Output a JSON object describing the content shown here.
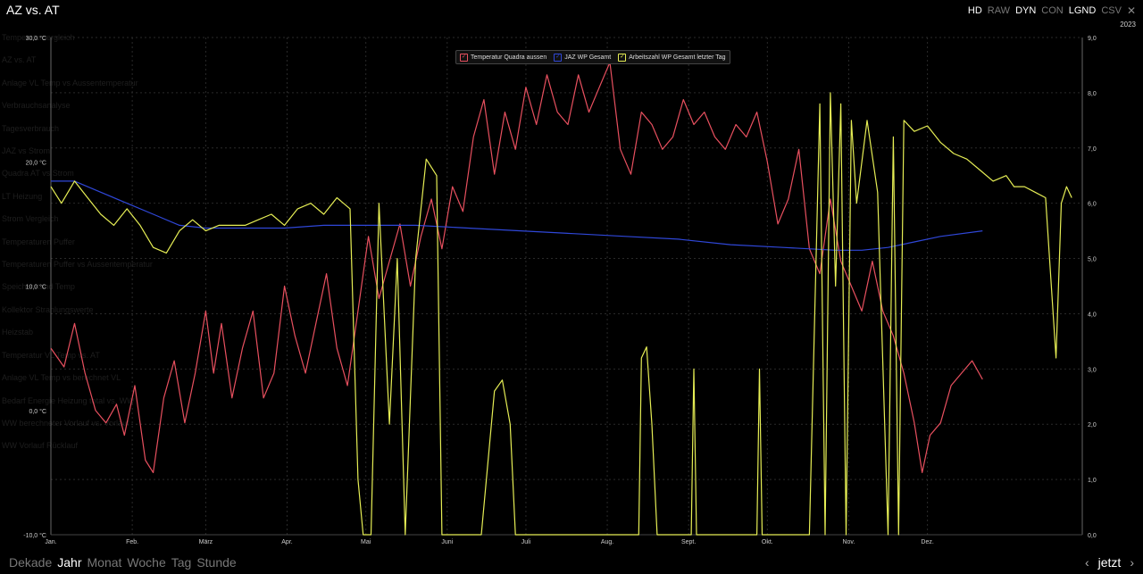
{
  "window": {
    "title": "AZ vs. AT",
    "options": [
      "HD",
      "RAW",
      "DYN",
      "CON",
      "LGND",
      "CSV"
    ],
    "options_active": [
      true,
      false,
      true,
      false,
      true,
      false
    ],
    "year": "2023"
  },
  "ghost_menu": [
    "Temperaturvergleich",
    "AZ vs. AT",
    "Anlage VL Temp vs Aussentemperatur",
    "Verbrauchsanalyse",
    "Tagesverbrauch",
    "JAZ vs Strom",
    "Quadra AT vs Strom",
    "LT Heizung",
    "Strom Vergleich",
    "Temperaturen Puffer",
    "Temperaturen Puffer vs Aussentemperatur",
    "Speicherstand Temp",
    "Kollektor Strahlungswerte",
    "Heizstab",
    "Temperatur VL Temp vs. AT",
    "Anlage VL Temp vs berechnet VL",
    "Bedarf Energie Heizung total vs. WW",
    "WW berechneter Vorlauf vs. Vorlauf",
    "WW Vorlauf Rücklauf"
  ],
  "bottom_nav": {
    "periods": [
      "Dekade",
      "Jahr",
      "Monat",
      "Woche",
      "Tag",
      "Stunde"
    ],
    "active": "Jahr",
    "prev_icon": "chevron-left-icon",
    "next_icon": "chevron-right-icon",
    "now_label": "jetzt"
  },
  "chart_data": {
    "type": "line",
    "x_range": [
      "2023-01-01",
      "2023-12-31"
    ],
    "x_tick_labels": [
      "Jan.",
      "Feb.",
      "März",
      "Apr.",
      "Mai",
      "Juni",
      "Juli",
      "Aug.",
      "Sept.",
      "Okt.",
      "Nov.",
      "Dez."
    ],
    "y_left": {
      "ticks": [
        "-10,0 °C",
        "0,0 °C",
        "10,0 °C",
        "20,0 °C",
        "30,0 °C"
      ],
      "range": [
        -10,
        30
      ]
    },
    "y_right": {
      "ticks": [
        "0,0",
        "1,0",
        "2,0",
        "3,0",
        "4,0",
        "5,0",
        "6,0",
        "7,0",
        "8,0",
        "9,0"
      ],
      "range": [
        0,
        9
      ]
    },
    "grid": true,
    "legend_position": "top-center",
    "series": [
      {
        "name": "Temperatur Quadra aussen",
        "color": "#e8505f",
        "axis": "left",
        "points": [
          [
            1,
            5
          ],
          [
            6,
            3.5
          ],
          [
            10,
            7
          ],
          [
            14,
            3
          ],
          [
            18,
            0
          ],
          [
            22,
            -1
          ],
          [
            26,
            0.5
          ],
          [
            29,
            -2
          ],
          [
            33,
            2
          ],
          [
            37,
            -4
          ],
          [
            40,
            -5
          ],
          [
            44,
            1
          ],
          [
            48,
            4
          ],
          [
            52,
            -1
          ],
          [
            56,
            3
          ],
          [
            60,
            8
          ],
          [
            63,
            3
          ],
          [
            66,
            7
          ],
          [
            70,
            1
          ],
          [
            74,
            5
          ],
          [
            78,
            8
          ],
          [
            82,
            1
          ],
          [
            86,
            3
          ],
          [
            90,
            10
          ],
          [
            94,
            6
          ],
          [
            98,
            3
          ],
          [
            102,
            7
          ],
          [
            106,
            11
          ],
          [
            110,
            5
          ],
          [
            114,
            2
          ],
          [
            118,
            8
          ],
          [
            122,
            14
          ],
          [
            126,
            9
          ],
          [
            130,
            12
          ],
          [
            134,
            15
          ],
          [
            138,
            10
          ],
          [
            142,
            14
          ],
          [
            146,
            17
          ],
          [
            150,
            13
          ],
          [
            154,
            18
          ],
          [
            158,
            16
          ],
          [
            162,
            22
          ],
          [
            166,
            25
          ],
          [
            170,
            19
          ],
          [
            174,
            24
          ],
          [
            178,
            21
          ],
          [
            182,
            26
          ],
          [
            186,
            23
          ],
          [
            190,
            27
          ],
          [
            194,
            24
          ],
          [
            198,
            23
          ],
          [
            202,
            27
          ],
          [
            206,
            24
          ],
          [
            210,
            26
          ],
          [
            214,
            28
          ],
          [
            218,
            21
          ],
          [
            222,
            19
          ],
          [
            226,
            24
          ],
          [
            230,
            23
          ],
          [
            234,
            21
          ],
          [
            238,
            22
          ],
          [
            242,
            25
          ],
          [
            246,
            23
          ],
          [
            250,
            24
          ],
          [
            254,
            22
          ],
          [
            258,
            21
          ],
          [
            262,
            23
          ],
          [
            266,
            22
          ],
          [
            270,
            24
          ],
          [
            274,
            20
          ],
          [
            278,
            15
          ],
          [
            282,
            17
          ],
          [
            286,
            21
          ],
          [
            290,
            13
          ],
          [
            294,
            11
          ],
          [
            298,
            17
          ],
          [
            302,
            12
          ],
          [
            306,
            10
          ],
          [
            310,
            8
          ],
          [
            314,
            12
          ],
          [
            318,
            8
          ],
          [
            322,
            6
          ],
          [
            326,
            3
          ],
          [
            330,
            -1
          ],
          [
            333,
            -5
          ],
          [
            336,
            -2
          ],
          [
            340,
            -1
          ],
          [
            344,
            2
          ],
          [
            348,
            3
          ],
          [
            352,
            4
          ],
          [
            356,
            2.5
          ]
        ]
      },
      {
        "name": "JAZ WP Gesamt",
        "color": "#2f47d8",
        "axis": "right",
        "points": [
          [
            1,
            6.4
          ],
          [
            10,
            6.4
          ],
          [
            20,
            6.2
          ],
          [
            30,
            6
          ],
          [
            40,
            5.8
          ],
          [
            50,
            5.6
          ],
          [
            60,
            5.55
          ],
          [
            75,
            5.55
          ],
          [
            90,
            5.55
          ],
          [
            105,
            5.6
          ],
          [
            120,
            5.6
          ],
          [
            140,
            5.6
          ],
          [
            160,
            5.55
          ],
          [
            180,
            5.5
          ],
          [
            200,
            5.45
          ],
          [
            220,
            5.4
          ],
          [
            240,
            5.35
          ],
          [
            260,
            5.25
          ],
          [
            280,
            5.2
          ],
          [
            300,
            5.15
          ],
          [
            310,
            5.15
          ],
          [
            320,
            5.2
          ],
          [
            330,
            5.3
          ],
          [
            340,
            5.4
          ],
          [
            356,
            5.5
          ]
        ]
      },
      {
        "name": "Arbeitszahl WP Gesamt letzter Tag",
        "color": "#e6ee55",
        "axis": "right",
        "points": [
          [
            1,
            6.3
          ],
          [
            5,
            6
          ],
          [
            10,
            6.4
          ],
          [
            15,
            6.1
          ],
          [
            20,
            5.8
          ],
          [
            25,
            5.6
          ],
          [
            30,
            5.9
          ],
          [
            35,
            5.6
          ],
          [
            40,
            5.2
          ],
          [
            45,
            5.1
          ],
          [
            50,
            5.5
          ],
          [
            55,
            5.7
          ],
          [
            60,
            5.5
          ],
          [
            65,
            5.6
          ],
          [
            70,
            5.6
          ],
          [
            75,
            5.6
          ],
          [
            80,
            5.7
          ],
          [
            85,
            5.8
          ],
          [
            90,
            5.6
          ],
          [
            95,
            5.9
          ],
          [
            100,
            6
          ],
          [
            105,
            5.8
          ],
          [
            110,
            6.1
          ],
          [
            115,
            5.9
          ],
          [
            118,
            1
          ],
          [
            120,
            0
          ],
          [
            123,
            0
          ],
          [
            126,
            6
          ],
          [
            130,
            2
          ],
          [
            133,
            5
          ],
          [
            136,
            0
          ],
          [
            140,
            5
          ],
          [
            144,
            6.8
          ],
          [
            148,
            6.5
          ],
          [
            150,
            0
          ],
          [
            155,
            0
          ],
          [
            165,
            0
          ],
          [
            170,
            2.6
          ],
          [
            173,
            2.8
          ],
          [
            176,
            2
          ],
          [
            178,
            0
          ],
          [
            185,
            0
          ],
          [
            200,
            0
          ],
          [
            215,
            0
          ],
          [
            225,
            0
          ],
          [
            226,
            3.2
          ],
          [
            228,
            3.4
          ],
          [
            230,
            2
          ],
          [
            232,
            0
          ],
          [
            240,
            0
          ],
          [
            245,
            0
          ],
          [
            246,
            3
          ],
          [
            247,
            0
          ],
          [
            260,
            0
          ],
          [
            270,
            0
          ],
          [
            271,
            3
          ],
          [
            272,
            0
          ],
          [
            280,
            0
          ],
          [
            290,
            0
          ],
          [
            294,
            7.8
          ],
          [
            296,
            0
          ],
          [
            298,
            8
          ],
          [
            300,
            4.5
          ],
          [
            302,
            7.8
          ],
          [
            304,
            0
          ],
          [
            306,
            7.5
          ],
          [
            308,
            6
          ],
          [
            312,
            7.5
          ],
          [
            316,
            6.2
          ],
          [
            320,
            0
          ],
          [
            322,
            7.2
          ],
          [
            324,
            0
          ],
          [
            326,
            7.5
          ],
          [
            330,
            7.3
          ],
          [
            335,
            7.4
          ],
          [
            340,
            7.1
          ],
          [
            345,
            6.9
          ],
          [
            350,
            6.8
          ],
          [
            355,
            6.6
          ],
          [
            360,
            6.4
          ],
          [
            365,
            6.5
          ],
          [
            368,
            6.3
          ],
          [
            372,
            6.3
          ],
          [
            376,
            6.2
          ],
          [
            380,
            6.1
          ],
          [
            384,
            3.2
          ],
          [
            386,
            6
          ],
          [
            388,
            6.3
          ],
          [
            390,
            6.1
          ]
        ]
      }
    ]
  }
}
